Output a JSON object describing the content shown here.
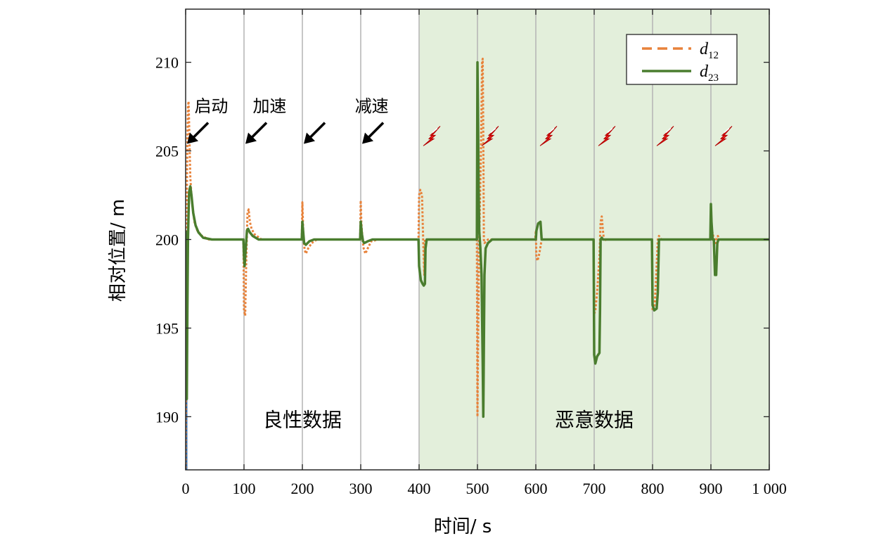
{
  "chart_data": {
    "type": "line",
    "xlabel": "时间/ s",
    "ylabel": "相对位置/ m",
    "xlim": [
      0,
      1000
    ],
    "ylim": [
      187,
      213
    ],
    "xticks": [
      0,
      100,
      200,
      300,
      400,
      500,
      600,
      700,
      800,
      900,
      1000
    ],
    "xtick_labels": [
      "0",
      "100",
      "200",
      "300",
      "400",
      "500",
      "600",
      "700",
      "800",
      "900",
      "1 000"
    ],
    "yticks": [
      190,
      195,
      200,
      205,
      210
    ],
    "ytick_labels": [
      "190",
      "195",
      "200",
      "205",
      "210"
    ],
    "vlines": [
      100,
      200,
      300,
      400,
      500,
      600,
      700,
      800,
      900
    ],
    "shaded_region": {
      "x_from": 400,
      "x_to": 1000,
      "color": "#e3efdb"
    },
    "region_labels": [
      {
        "text": "良性数据",
        "x": 200,
        "y": 190
      },
      {
        "text": "恶意数据",
        "x": 700,
        "y": 190
      }
    ],
    "annotations": [
      {
        "text": "启动",
        "x": 15,
        "y": 207.2
      },
      {
        "text": "加速",
        "x": 115,
        "y": 207.2
      },
      {
        "text": "减速",
        "x": 290,
        "y": 207.2
      }
    ],
    "arrows": [
      {
        "event": "启动",
        "x": 0
      },
      {
        "event": "加速",
        "x": 100
      },
      {
        "event": "",
        "x": 200
      },
      {
        "event": "减速",
        "x": 300
      }
    ],
    "attacks": [
      400,
      500,
      600,
      700,
      800,
      900
    ],
    "legend": {
      "position": "top-right",
      "entries": [
        {
          "label": "d",
          "sub": "12",
          "style": "dashed"
        },
        {
          "label": "d",
          "sub": "23",
          "style": "solid"
        }
      ]
    },
    "series": [
      {
        "name": "d12",
        "color": "#e8823a",
        "style": "dashed",
        "points": [
          [
            0,
            186
          ],
          [
            1,
            196
          ],
          [
            2,
            202
          ],
          [
            3,
            205.5
          ],
          [
            4,
            207.5
          ],
          [
            5,
            207.8
          ],
          [
            6,
            206.5
          ],
          [
            7,
            205
          ],
          [
            8,
            203.5
          ],
          [
            9,
            203
          ],
          [
            10,
            202.5
          ],
          [
            12,
            201.8
          ],
          [
            15,
            201
          ],
          [
            20,
            200.5
          ],
          [
            28,
            200.2
          ],
          [
            40,
            200
          ],
          [
            99,
            200
          ],
          [
            100,
            196
          ],
          [
            102,
            195.7
          ],
          [
            104,
            199
          ],
          [
            106,
            201.5
          ],
          [
            108,
            201.7
          ],
          [
            110,
            201
          ],
          [
            113,
            200.6
          ],
          [
            118,
            200.3
          ],
          [
            130,
            200
          ],
          [
            199,
            200
          ],
          [
            200,
            202.1
          ],
          [
            201,
            201
          ],
          [
            202,
            200
          ],
          [
            204,
            199.4
          ],
          [
            206,
            199.2
          ],
          [
            210,
            199.5
          ],
          [
            216,
            199.8
          ],
          [
            225,
            200
          ],
          [
            299,
            200
          ],
          [
            300,
            202.2
          ],
          [
            301,
            201
          ],
          [
            303,
            200
          ],
          [
            305,
            199.5
          ],
          [
            308,
            199.2
          ],
          [
            312,
            199.5
          ],
          [
            318,
            199.9
          ],
          [
            330,
            200
          ],
          [
            399,
            200
          ],
          [
            400,
            202.5
          ],
          [
            402,
            202.8
          ],
          [
            405,
            202.5
          ],
          [
            407,
            200
          ],
          [
            409,
            198
          ],
          [
            410,
            200
          ],
          [
            412,
            200
          ],
          [
            499,
            200
          ],
          [
            500,
            190
          ],
          [
            501,
            194
          ],
          [
            503,
            200
          ],
          [
            506,
            205
          ],
          [
            508,
            210
          ],
          [
            509,
            210.2
          ],
          [
            510,
            206
          ],
          [
            511,
            200
          ],
          [
            512,
            199.8
          ],
          [
            518,
            200
          ],
          [
            599,
            200
          ],
          [
            600,
            200.5
          ],
          [
            601,
            199
          ],
          [
            603,
            198.8
          ],
          [
            606,
            199.2
          ],
          [
            610,
            200
          ],
          [
            699,
            200
          ],
          [
            700,
            195.8
          ],
          [
            702,
            196
          ],
          [
            705,
            197
          ],
          [
            709,
            199
          ],
          [
            711,
            201
          ],
          [
            713,
            201.3
          ],
          [
            715,
            200.5
          ],
          [
            717,
            199.9
          ],
          [
            720,
            200
          ],
          [
            799,
            200
          ],
          [
            800,
            196
          ],
          [
            802,
            196
          ],
          [
            804,
            196.5
          ],
          [
            807,
            198.5
          ],
          [
            809,
            200
          ],
          [
            811,
            200.2
          ],
          [
            815,
            200
          ],
          [
            899,
            200
          ],
          [
            900,
            201
          ],
          [
            902,
            200.5
          ],
          [
            904,
            200.2
          ],
          [
            906,
            200
          ],
          [
            908,
            199.8
          ],
          [
            910,
            200.1
          ],
          [
            912,
            200.2
          ],
          [
            914,
            200
          ],
          [
            1000,
            200
          ]
        ]
      },
      {
        "name": "d23",
        "color": "#4a7d2e",
        "style": "solid",
        "points": [
          [
            0,
            200.5
          ],
          [
            1,
            196
          ],
          [
            2,
            191
          ],
          [
            3,
            196
          ],
          [
            4,
            200
          ],
          [
            5,
            201.5
          ],
          [
            6,
            202.7
          ],
          [
            8,
            203
          ],
          [
            10,
            202.5
          ],
          [
            13,
            201.5
          ],
          [
            17,
            200.8
          ],
          [
            22,
            200.4
          ],
          [
            30,
            200.1
          ],
          [
            45,
            200
          ],
          [
            99,
            200
          ],
          [
            100,
            199
          ],
          [
            101,
            198.5
          ],
          [
            103,
            199.5
          ],
          [
            105,
            200.5
          ],
          [
            107,
            200.6
          ],
          [
            110,
            200.4
          ],
          [
            115,
            200.2
          ],
          [
            125,
            200
          ],
          [
            199,
            200
          ],
          [
            200,
            201
          ],
          [
            201,
            200.6
          ],
          [
            203,
            199.8
          ],
          [
            206,
            199.7
          ],
          [
            212,
            199.9
          ],
          [
            220,
            200
          ],
          [
            299,
            200
          ],
          [
            300,
            201
          ],
          [
            302,
            200.3
          ],
          [
            304,
            199.9
          ],
          [
            306,
            199.8
          ],
          [
            312,
            199.9
          ],
          [
            320,
            200
          ],
          [
            399,
            200
          ],
          [
            400,
            198.5
          ],
          [
            403,
            197.7
          ],
          [
            406,
            197.5
          ],
          [
            408,
            197.4
          ],
          [
            410,
            197.5
          ],
          [
            411,
            199.5
          ],
          [
            413,
            200
          ],
          [
            499,
            200
          ],
          [
            500,
            210
          ],
          [
            501,
            207
          ],
          [
            502,
            203
          ],
          [
            503,
            200.5
          ],
          [
            505,
            199.5
          ],
          [
            507,
            198
          ],
          [
            509,
            193
          ],
          [
            510,
            190
          ],
          [
            511,
            194
          ],
          [
            512,
            198
          ],
          [
            514,
            199.5
          ],
          [
            518,
            199.8
          ],
          [
            525,
            200
          ],
          [
            599,
            200
          ],
          [
            600,
            200
          ],
          [
            601,
            200.5
          ],
          [
            604,
            200.9
          ],
          [
            608,
            201
          ],
          [
            610,
            200
          ],
          [
            611,
            200
          ],
          [
            699,
            200
          ],
          [
            700,
            193.5
          ],
          [
            702,
            193
          ],
          [
            705,
            193.4
          ],
          [
            709,
            193.6
          ],
          [
            710,
            196
          ],
          [
            711,
            200
          ],
          [
            713,
            200.1
          ],
          [
            715,
            200
          ],
          [
            799,
            200
          ],
          [
            800,
            196.3
          ],
          [
            803,
            196
          ],
          [
            807,
            196.1
          ],
          [
            809,
            197
          ],
          [
            811,
            200
          ],
          [
            813,
            200
          ],
          [
            899,
            200
          ],
          [
            900,
            202
          ],
          [
            901,
            201
          ],
          [
            903,
            200
          ],
          [
            905,
            200
          ],
          [
            907,
            198
          ],
          [
            909,
            198
          ],
          [
            911,
            199.8
          ],
          [
            913,
            200
          ],
          [
            1000,
            200
          ]
        ]
      }
    ]
  }
}
